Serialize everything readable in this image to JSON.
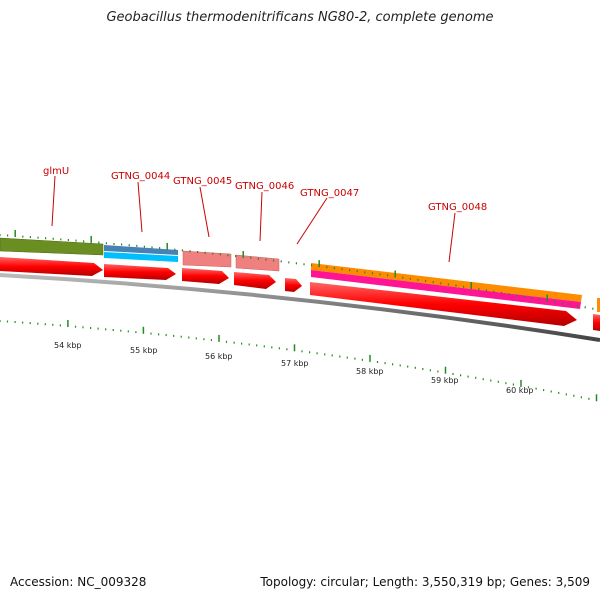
{
  "title": "Geobacillus thermodenitrificans NG80-2, complete genome",
  "footer": {
    "accession": "Accession: NC_009328",
    "summary": "Topology: circular; Length: 3,550,319 bp; Genes: 3,509"
  },
  "gene_labels": [
    {
      "name": "glmU"
    },
    {
      "name": "GTNG_0044"
    },
    {
      "name": "GTNG_0045"
    },
    {
      "name": "GTNG_0046"
    },
    {
      "name": "GTNG_0047"
    },
    {
      "name": "GTNG_0048"
    }
  ],
  "scale_labels": [
    "54 kbp",
    "55 kbp",
    "56 kbp",
    "57 kbp",
    "58 kbp",
    "59 kbp",
    "60 kbp"
  ],
  "colors": {
    "cds": "#ff0000",
    "backbone": "#777777",
    "glmU": "#6b8e23",
    "GTNG_0044_a": "#4682b4",
    "GTNG_0044_b": "#00bfff",
    "pink": "#f08080",
    "orange": "#ff8c00",
    "magenta": "#ff1493",
    "tick": "#228b22",
    "label": "#cc0000"
  }
}
